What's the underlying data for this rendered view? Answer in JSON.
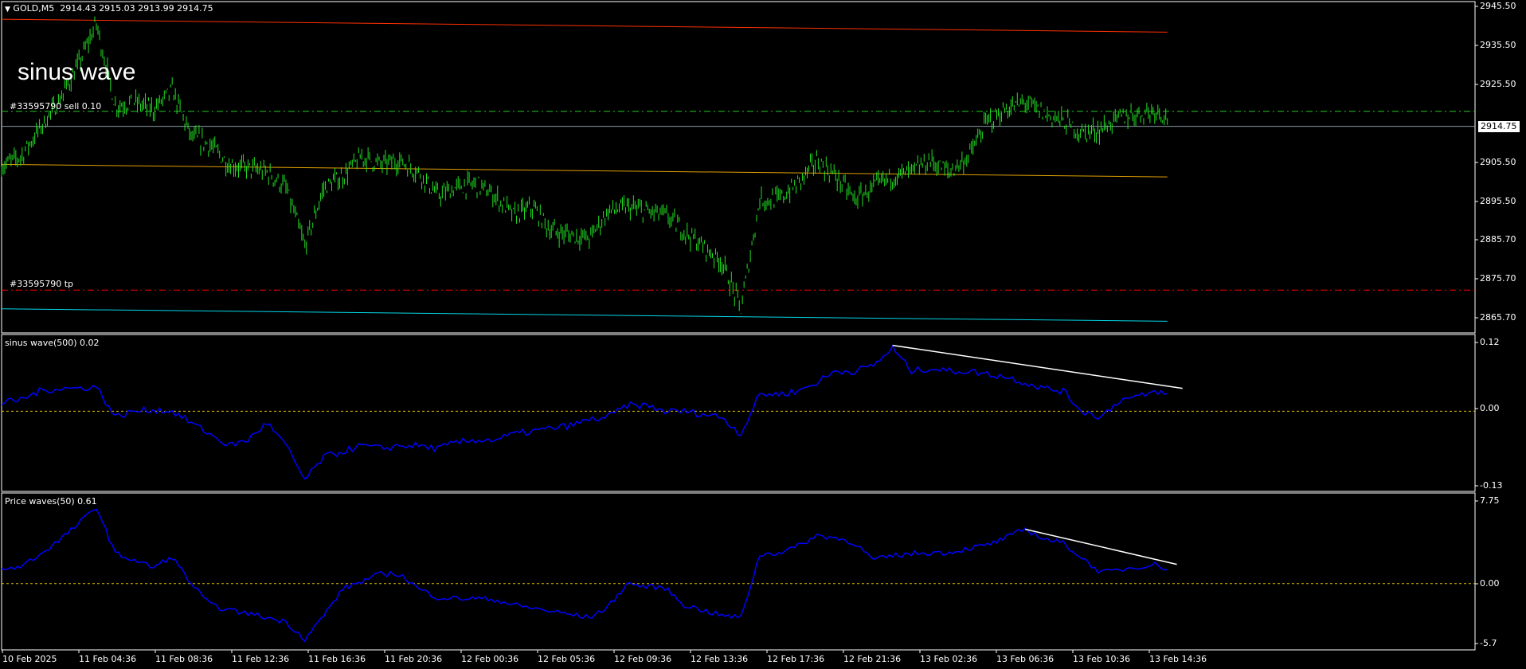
{
  "header": {
    "symbol": "GOLD,M5",
    "ohlc": "2914.43 2915.03 2913.99 2914.75"
  },
  "chart_label": "sinus wave",
  "orders": {
    "sell_label": "#33595790 sell 0.10",
    "tp_label": "#33595790 tp",
    "sell_price": 2918.6,
    "tp_price": 2872.8
  },
  "bid": {
    "label": "2914.75",
    "value": 2914.75
  },
  "colors": {
    "background": "#000000",
    "bars": "#22e022",
    "indicator": "#0000ff",
    "channel_top": "#ff3000",
    "channel_mid": "#e0a000",
    "channel_bottom": "#00d8e8",
    "sell_line": "#22cc22",
    "tp_line": "#ff0000",
    "zero_line": "#e0c000",
    "trendline": "#ffffff"
  },
  "time_axis": [
    "10 Feb 2025",
    "11 Feb 04:36",
    "11 Feb 08:36",
    "11 Feb 12:36",
    "11 Feb 16:36",
    "11 Feb 20:36",
    "12 Feb 00:36",
    "12 Feb 05:36",
    "12 Feb 09:36",
    "12 Feb 13:36",
    "12 Feb 17:36",
    "12 Feb 21:36",
    "13 Feb 02:36",
    "13 Feb 06:36",
    "13 Feb 10:36",
    "13 Feb 14:36"
  ],
  "price_axis": [
    "2945.50",
    "2935.50",
    "2925.50",
    "2905.50",
    "2895.50",
    "2885.70",
    "2875.70",
    "2865.70"
  ],
  "sub1": {
    "title": "sinus wave(500) 0.02",
    "axis": [
      "0.12",
      "0.00",
      "-0.13"
    ]
  },
  "sub2": {
    "title": "Price waves(50) 0.61",
    "axis": [
      "7.75",
      "0.00",
      "-5.7"
    ]
  },
  "chart_data": [
    {
      "type": "bar",
      "title": "GOLD,M5",
      "sampling": "hourly close",
      "ylim": [
        2863.5,
        2946.7
      ],
      "close": [
        2904.5,
        2907,
        2914,
        2921,
        2930,
        2941,
        2920,
        2921,
        2919,
        2924,
        2912,
        2910,
        2905,
        2904,
        2903,
        2899,
        2884,
        2899,
        2902,
        2907,
        2905,
        2906,
        2903,
        2897,
        2899,
        2900,
        2897,
        2892,
        2894,
        2888,
        2887,
        2886,
        2893,
        2894,
        2893,
        2892,
        2888,
        2884,
        2880,
        2868,
        2896,
        2896,
        2900,
        2906,
        2902,
        2896,
        2899,
        2902,
        2903,
        2906,
        2903,
        2907,
        2916,
        2919,
        2921,
        2918,
        2916,
        2913,
        2914,
        2917,
        2918,
        2919,
        2914.75
      ],
      "channel": {
        "top": [
          2942.2,
          2938.9
        ],
        "middle": [
          2905.0,
          2901.8
        ],
        "bottom": [
          2868.0,
          2864.8
        ]
      }
    },
    {
      "type": "line",
      "title": "sinus wave(500) 0.02",
      "ylim": [
        -0.13,
        0.12
      ],
      "values": [
        0.014,
        0.02,
        0.035,
        0.04,
        0.04,
        0.043,
        -0.01,
        0.0,
        0.003,
        0.0,
        -0.02,
        -0.04,
        -0.06,
        -0.05,
        -0.02,
        -0.06,
        -0.12,
        -0.08,
        -0.07,
        -0.06,
        -0.065,
        -0.06,
        -0.06,
        -0.065,
        -0.055,
        -0.05,
        -0.05,
        -0.04,
        -0.035,
        -0.03,
        -0.025,
        -0.015,
        -0.01,
        0.01,
        0.01,
        0.0,
        0.0,
        -0.005,
        -0.01,
        -0.04,
        0.03,
        0.03,
        0.035,
        0.05,
        0.07,
        0.07,
        0.08,
        0.11,
        0.07,
        0.075,
        0.07,
        0.07,
        0.065,
        0.06,
        0.05,
        0.04,
        0.035,
        0.0,
        -0.01,
        0.02,
        0.025,
        0.035,
        0.02
      ],
      "trendline": [
        0.115,
        0.04
      ]
    },
    {
      "type": "line",
      "title": "Price waves(50) 0.61",
      "ylim": [
        -5.7,
        7.75
      ],
      "values": [
        1.3,
        1.6,
        2.7,
        4,
        5.5,
        7.2,
        2.8,
        2.2,
        1.5,
        2.5,
        0,
        -2,
        -2.5,
        -2.8,
        -3.2,
        -3.6,
        -5.2,
        -3,
        -0.5,
        0.2,
        0.9,
        0.9,
        -0.5,
        -1.3,
        -1.4,
        -1.4,
        -1.5,
        -2,
        -2.3,
        -2.6,
        -2.9,
        -3.2,
        -2.2,
        0.0,
        -0.3,
        -0.4,
        -2,
        -2.5,
        -3,
        -3.2,
        2.7,
        2.9,
        3.5,
        4.5,
        4.3,
        3.8,
        2.2,
        2.6,
        2.8,
        2.9,
        2.9,
        3.3,
        3.6,
        4.3,
        5.1,
        4.2,
        3.8,
        2.4,
        1.0,
        1.3,
        1.6,
        1.8,
        0.7
      ],
      "trendline": [
        5.1,
        1.8
      ]
    }
  ]
}
